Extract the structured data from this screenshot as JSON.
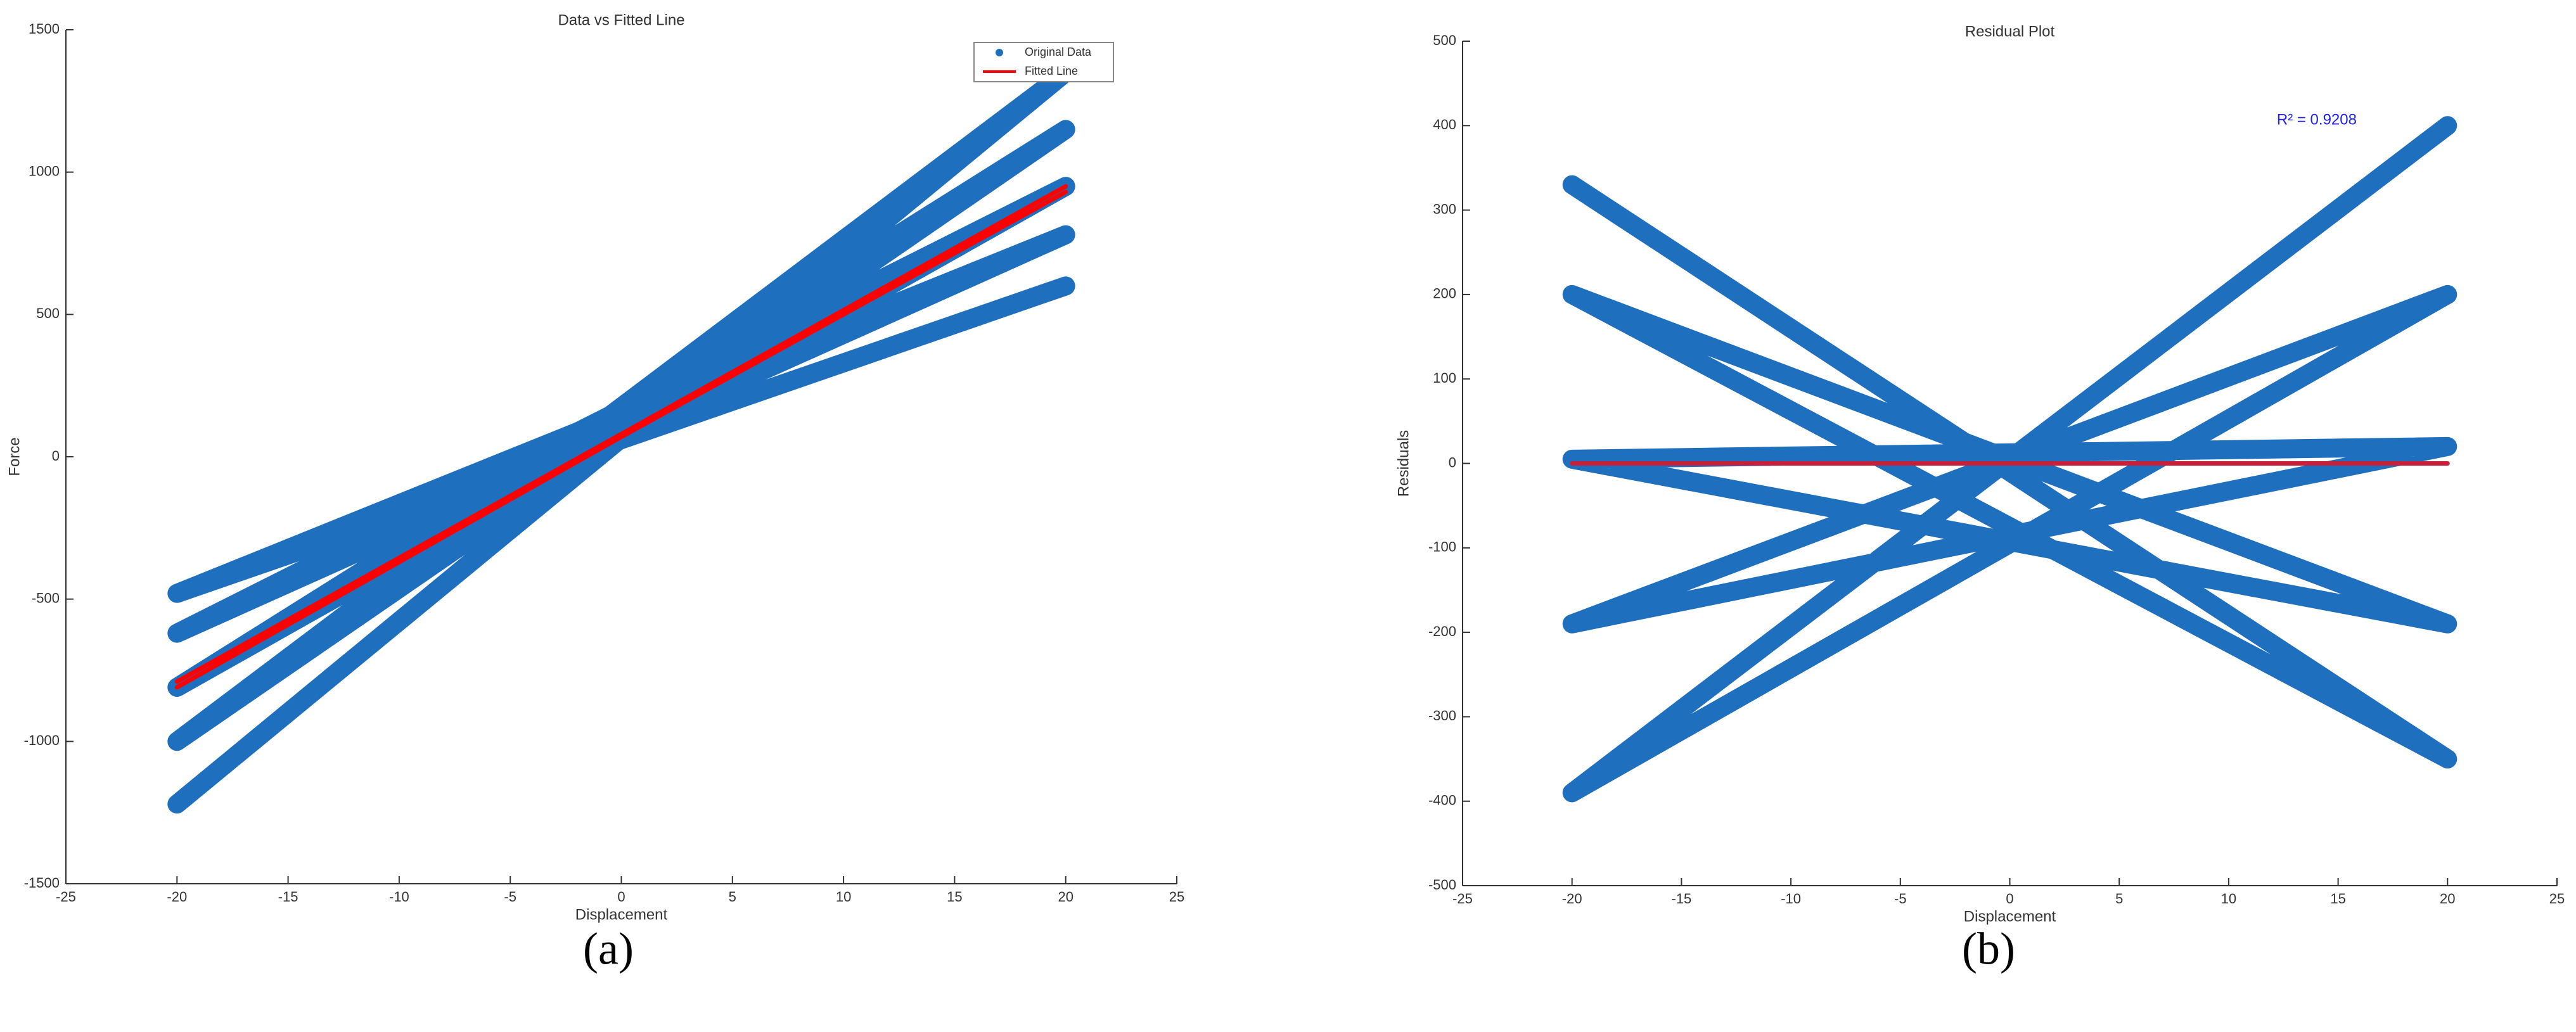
{
  "chart_data": [
    {
      "type": "line",
      "title": "Data vs Fitted Line",
      "xlabel": "Displacement",
      "ylabel": "Force",
      "caption": "(a)",
      "xlim": [
        -25,
        25
      ],
      "xticks": [
        -25,
        -20,
        -15,
        -10,
        -5,
        0,
        5,
        10,
        15,
        20,
        25
      ],
      "ylim": [
        -1500,
        1500
      ],
      "yticks": [
        -1500,
        -1000,
        -500,
        0,
        500,
        1000,
        1500
      ],
      "legend": "upper right",
      "series": [
        {
          "name": "Original Data",
          "color": "#1f6fbf",
          "x": [
            -20,
            20,
            -20,
            20,
            -20,
            20,
            -20,
            20,
            -20,
            20
          ],
          "values": [
            -1220,
            1350,
            -1000,
            1150,
            -810,
            950,
            -620,
            780,
            -480,
            600
          ]
        },
        {
          "name": "Fitted Line",
          "color": "#ff0000",
          "x": [
            -20,
            20,
            -20,
            20
          ],
          "values": [
            -810,
            950,
            -790,
            930
          ]
        }
      ]
    },
    {
      "type": "line",
      "title": "Residual Plot",
      "xlabel": "Displacement",
      "ylabel": "Residuals",
      "caption": "(b)",
      "annotation": "R² = 0.9208",
      "xlim": [
        -25,
        25
      ],
      "xticks": [
        -25,
        -20,
        -15,
        -10,
        -5,
        0,
        5,
        10,
        15,
        20,
        25
      ],
      "ylim": [
        -500,
        500
      ],
      "yticks": [
        -500,
        -400,
        -300,
        -200,
        -100,
        0,
        100,
        200,
        300,
        400,
        500
      ],
      "series": [
        {
          "color": "#1f6fbf",
          "x": [
            -20,
            20,
            -20,
            20,
            -20,
            20,
            -20,
            20,
            -20,
            20
          ],
          "values": [
            330,
            -350,
            200,
            -190,
            5,
            20,
            -190,
            200,
            -390,
            400
          ]
        },
        {
          "color": "#c8203a",
          "x": [
            -20,
            20
          ],
          "values": [
            0,
            0
          ]
        }
      ]
    }
  ]
}
